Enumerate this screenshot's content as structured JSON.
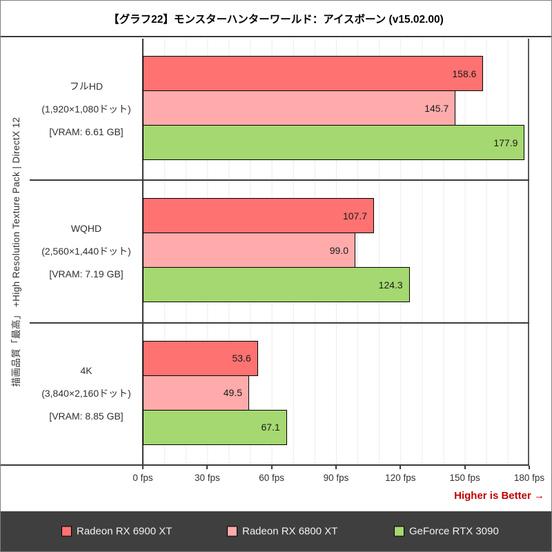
{
  "title": "【グラフ22】モンスターハンターワールド：アイスボーン (v15.02.00)",
  "y_axis_title": "描画品質「最高」 +High Resolution Texture Pack | DirectX 12",
  "note": "Higher is Better →",
  "colors": {
    "series_red": "#FF7272",
    "series_pink": "#FFABAB",
    "series_green": "#A5D870",
    "legend_background": "#3F3F3F",
    "note_red": "#C00000",
    "axis_line": "#3A3A3A",
    "gridline": "#ECECEC"
  },
  "chart_data": {
    "type": "bar",
    "orientation": "horizontal",
    "title": "【グラフ22】モンスターハンターワールド：アイスボーン (v15.02.00)",
    "xlabel": "fps",
    "xlim": [
      0,
      180
    ],
    "x_ticks": [
      "0 fps",
      "30 fps",
      "60 fps",
      "90 fps",
      "120 fps",
      "150 fps",
      "180 fps"
    ],
    "grid_minor_step_fps": 10,
    "legend_position": "bottom",
    "higher_is_better": true,
    "categories": [
      {
        "name": "フルHD",
        "lines": [
          "フルHD",
          "(1,920×1,080ドット)",
          "[VRAM: 6.61 GB]"
        ]
      },
      {
        "name": "WQHD",
        "lines": [
          "WQHD",
          "(2,560×1,440ドット)",
          "[VRAM: 7.19 GB]"
        ]
      },
      {
        "name": "4K",
        "lines": [
          "4K",
          "(3,840×2,160ドット)",
          "[VRAM: 8.85 GB]"
        ]
      }
    ],
    "series": [
      {
        "name": "Radeon RX 6900 XT",
        "color": "#FF7272",
        "values": [
          158.6,
          107.7,
          53.6
        ],
        "labels": [
          "158.6",
          "107.7",
          "53.6"
        ]
      },
      {
        "name": "Radeon RX 6800 XT",
        "color": "#FFABAB",
        "values": [
          145.7,
          99.0,
          49.5
        ],
        "labels": [
          "145.7",
          "99.0",
          "49.5"
        ]
      },
      {
        "name": "GeForce RTX 3090",
        "color": "#A5D870",
        "values": [
          177.9,
          124.3,
          67.1
        ],
        "labels": [
          "177.9",
          "124.3",
          "67.1"
        ]
      }
    ]
  },
  "legend": {
    "items": [
      {
        "label": "Radeon RX 6900 XT",
        "color": "#FF7272"
      },
      {
        "label": "Radeon RX 6800 XT",
        "color": "#FFABAB"
      },
      {
        "label": "GeForce RTX 3090",
        "color": "#A5D870"
      }
    ]
  }
}
